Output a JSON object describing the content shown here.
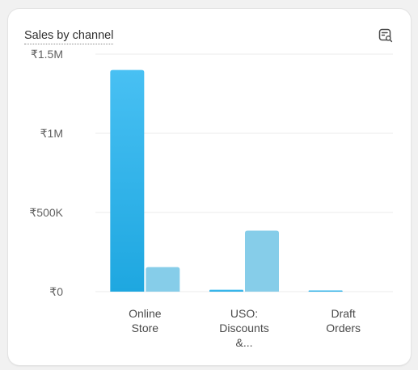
{
  "card": {
    "title": "Sales by channel",
    "action_icon": "chart-search-icon"
  },
  "colors": {
    "primary_series": "#1ea7e0",
    "primary_series_light": "#48c0f3",
    "comparison_series": "#86cde9",
    "grid": "#ebebeb",
    "text": "#303030"
  },
  "chart_data": {
    "type": "bar",
    "title": "Sales by channel",
    "categories": [
      [
        "Online",
        "Store"
      ],
      [
        "USO:",
        "Discounts",
        "&..."
      ],
      [
        "Draft",
        "Orders"
      ]
    ],
    "series": [
      {
        "values": [
          1400000,
          12000,
          4000
        ]
      },
      {
        "values": [
          155000,
          385000,
          0
        ]
      }
    ],
    "ylim": [
      0,
      1500000
    ],
    "yticks": [
      0,
      500000,
      1000000,
      1500000
    ],
    "ytick_labels": [
      "₹0",
      "₹500K",
      "₹1M",
      "₹1.5M"
    ],
    "grid": true,
    "legend": "none"
  }
}
